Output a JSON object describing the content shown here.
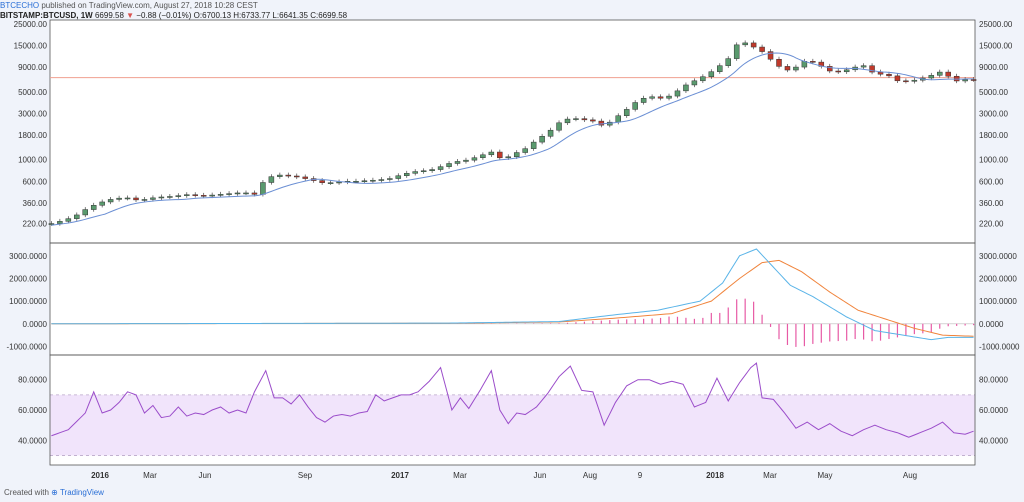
{
  "header": {
    "publisher": "BTCECHO",
    "published_text": "published on TradingView.com, August 27, 2018 10:28 CEST",
    "symbol": "BITSTAMP:BTCUSD, 1W",
    "last": "6699.58",
    "change": "−0.88 (−0.01%)",
    "ohlc": "O:6700.13 H:6733.77 L:6641.35 C:6699.58"
  },
  "footer": {
    "created_with": "Created with",
    "brand": "TradingView"
  },
  "colors": {
    "up": "#5a9a6e",
    "down": "#c0392b",
    "sma": "#6b8fd4",
    "macd": "#5ab4e8",
    "signal": "#f0843c",
    "hist": "#e75aa5",
    "rsi": "#9b4dca",
    "rsi_band": "#f1e4fb",
    "hline": "#f0a090"
  },
  "chart_data": [
    {
      "type": "candlestick",
      "name": "price",
      "yscale": "log",
      "ylim": [
        160,
        25000
      ],
      "y_ticks": [
        "25000.00",
        "15000.00",
        "9000.00",
        "5000.00",
        "3000.00",
        "1800.00",
        "1000.00",
        "600.00",
        "360.00",
        "220.00"
      ],
      "y_tick_values": [
        25000,
        15000,
        9000,
        5000,
        3000,
        1800,
        1000,
        600,
        360,
        220
      ],
      "x_ticks": [
        "2016",
        "Mar",
        "Jun",
        "Sep",
        "2017",
        "Mar",
        "Jun",
        "Aug",
        "9",
        "2018",
        "Mar",
        "May",
        "Aug"
      ],
      "horizontal_line": 7000,
      "anchors": [
        [
          0,
          220
        ],
        [
          5,
          240
        ],
        [
          9,
          270
        ],
        [
          13,
          320
        ],
        [
          17,
          360
        ],
        [
          21,
          390
        ],
        [
          26,
          410
        ],
        [
          31,
          380
        ],
        [
          37,
          410
        ],
        [
          43,
          420
        ],
        [
          49,
          440
        ],
        [
          53,
          420
        ],
        [
          56,
          430
        ],
        [
          60,
          440
        ],
        [
          68,
          460
        ],
        [
          72,
          440
        ],
        [
          76,
          640
        ],
        [
          80,
          700
        ],
        [
          84,
          680
        ],
        [
          88,
          660
        ],
        [
          92,
          620
        ],
        [
          96,
          580
        ],
        [
          100,
          580
        ],
        [
          104,
          600
        ],
        [
          108,
          600
        ],
        [
          112,
          610
        ],
        [
          116,
          620
        ],
        [
          120,
          640
        ],
        [
          124,
          700
        ],
        [
          128,
          750
        ],
        [
          132,
          770
        ],
        [
          136,
          800
        ],
        [
          140,
          900
        ],
        [
          144,
          960
        ],
        [
          148,
          1000
        ],
        [
          152,
          1100
        ],
        [
          156,
          1200
        ],
        [
          160,
          1000
        ],
        [
          164,
          1150
        ],
        [
          168,
          1300
        ],
        [
          172,
          1600
        ],
        [
          176,
          1900
        ],
        [
          180,
          2400
        ],
        [
          184,
          2700
        ],
        [
          188,
          2600
        ],
        [
          192,
          2500
        ],
        [
          196,
          2200
        ],
        [
          200,
          2700
        ],
        [
          204,
          3300
        ],
        [
          208,
          4100
        ],
        [
          212,
          4500
        ],
        [
          216,
          4300
        ],
        [
          220,
          4600
        ],
        [
          224,
          5700
        ],
        [
          228,
          6500
        ],
        [
          232,
          7400
        ],
        [
          236,
          8800
        ],
        [
          240,
          11000
        ],
        [
          244,
          17000
        ],
        [
          248,
          15000
        ],
        [
          252,
          13000
        ],
        [
          256,
          10200
        ],
        [
          260,
          8200
        ],
        [
          264,
          9000
        ],
        [
          268,
          10800
        ],
        [
          272,
          9500
        ],
        [
          276,
          8200
        ],
        [
          280,
          8000
        ],
        [
          284,
          8900
        ],
        [
          288,
          9300
        ],
        [
          292,
          7600
        ],
        [
          296,
          7600
        ],
        [
          300,
          6500
        ],
        [
          304,
          6400
        ],
        [
          308,
          6800
        ],
        [
          312,
          7400
        ],
        [
          316,
          8200
        ],
        [
          320,
          6400
        ],
        [
          324,
          6700
        ],
        [
          327,
          6699.58
        ]
      ]
    },
    {
      "type": "line",
      "name": "MACD",
      "y_ticks": [
        "3000.0000",
        "2000.0000",
        "1000.0000",
        "0.0000",
        "-1000.0000"
      ],
      "y_tick_values": [
        3000,
        2000,
        1000,
        0,
        -1000
      ],
      "ylim": [
        -1200,
        3300
      ],
      "macd_anchors": [
        [
          0,
          0
        ],
        [
          140,
          30
        ],
        [
          180,
          100
        ],
        [
          200,
          400
        ],
        [
          215,
          600
        ],
        [
          230,
          1000
        ],
        [
          238,
          1800
        ],
        [
          244,
          3000
        ],
        [
          250,
          3300
        ],
        [
          256,
          2500
        ],
        [
          262,
          1700
        ],
        [
          270,
          1200
        ],
        [
          282,
          300
        ],
        [
          292,
          -300
        ],
        [
          302,
          -500
        ],
        [
          312,
          -700
        ],
        [
          318,
          -600
        ],
        [
          327,
          -600
        ]
      ],
      "signal_anchors": [
        [
          0,
          0
        ],
        [
          140,
          25
        ],
        [
          180,
          80
        ],
        [
          200,
          250
        ],
        [
          220,
          450
        ],
        [
          234,
          1000
        ],
        [
          244,
          2000
        ],
        [
          252,
          2700
        ],
        [
          258,
          2800
        ],
        [
          266,
          2300
        ],
        [
          276,
          1400
        ],
        [
          286,
          600
        ],
        [
          296,
          200
        ],
        [
          306,
          -200
        ],
        [
          316,
          -500
        ],
        [
          327,
          -550
        ]
      ]
    },
    {
      "type": "line",
      "name": "RSI",
      "y_ticks": [
        "80.0000",
        "60.0000",
        "40.0000"
      ],
      "y_tick_values": [
        80,
        60,
        40
      ],
      "ylim": [
        25,
        95
      ],
      "band": [
        30,
        70
      ],
      "anchors": [
        [
          0,
          43
        ],
        [
          6,
          47
        ],
        [
          12,
          58
        ],
        [
          15,
          72
        ],
        [
          18,
          58
        ],
        [
          21,
          60
        ],
        [
          24,
          65
        ],
        [
          27,
          72
        ],
        [
          30,
          70
        ],
        [
          33,
          58
        ],
        [
          36,
          63
        ],
        [
          39,
          55
        ],
        [
          42,
          56
        ],
        [
          45,
          62
        ],
        [
          48,
          56
        ],
        [
          51,
          58
        ],
        [
          54,
          57
        ],
        [
          57,
          60
        ],
        [
          60,
          62
        ],
        [
          63,
          58
        ],
        [
          66,
          60
        ],
        [
          69,
          58
        ],
        [
          72,
          72
        ],
        [
          76,
          86
        ],
        [
          79,
          68
        ],
        [
          82,
          68
        ],
        [
          85,
          64
        ],
        [
          88,
          70
        ],
        [
          91,
          62
        ],
        [
          94,
          55
        ],
        [
          97,
          52
        ],
        [
          100,
          56
        ],
        [
          103,
          57
        ],
        [
          106,
          56
        ],
        [
          109,
          58
        ],
        [
          112,
          59
        ],
        [
          115,
          70
        ],
        [
          118,
          66
        ],
        [
          121,
          68
        ],
        [
          124,
          70
        ],
        [
          127,
          70
        ],
        [
          130,
          72
        ],
        [
          134,
          79
        ],
        [
          138,
          88
        ],
        [
          142,
          60
        ],
        [
          145,
          68
        ],
        [
          148,
          61
        ],
        [
          152,
          73
        ],
        [
          156,
          86
        ],
        [
          159,
          60
        ],
        [
          162,
          51
        ],
        [
          165,
          58
        ],
        [
          168,
          57
        ],
        [
          172,
          62
        ],
        [
          176,
          71
        ],
        [
          180,
          82
        ],
        [
          184,
          89
        ],
        [
          188,
          73
        ],
        [
          192,
          72
        ],
        [
          196,
          50
        ],
        [
          200,
          65
        ],
        [
          204,
          76
        ],
        [
          208,
          80
        ],
        [
          212,
          80
        ],
        [
          216,
          77
        ],
        [
          220,
          79
        ],
        [
          224,
          77
        ],
        [
          228,
          62
        ],
        [
          232,
          65
        ],
        [
          236,
          81
        ],
        [
          240,
          66
        ],
        [
          244,
          78
        ],
        [
          248,
          88
        ],
        [
          250,
          91
        ],
        [
          252,
          68
        ],
        [
          256,
          67
        ],
        [
          260,
          58
        ],
        [
          264,
          48
        ],
        [
          268,
          52
        ],
        [
          272,
          47
        ],
        [
          276,
          51
        ],
        [
          280,
          46
        ],
        [
          284,
          43
        ],
        [
          288,
          47
        ],
        [
          292,
          50
        ],
        [
          296,
          47
        ],
        [
          300,
          45
        ],
        [
          304,
          42
        ],
        [
          308,
          45
        ],
        [
          312,
          48
        ],
        [
          316,
          52
        ],
        [
          320,
          45
        ],
        [
          324,
          44
        ],
        [
          327,
          46
        ]
      ]
    }
  ]
}
